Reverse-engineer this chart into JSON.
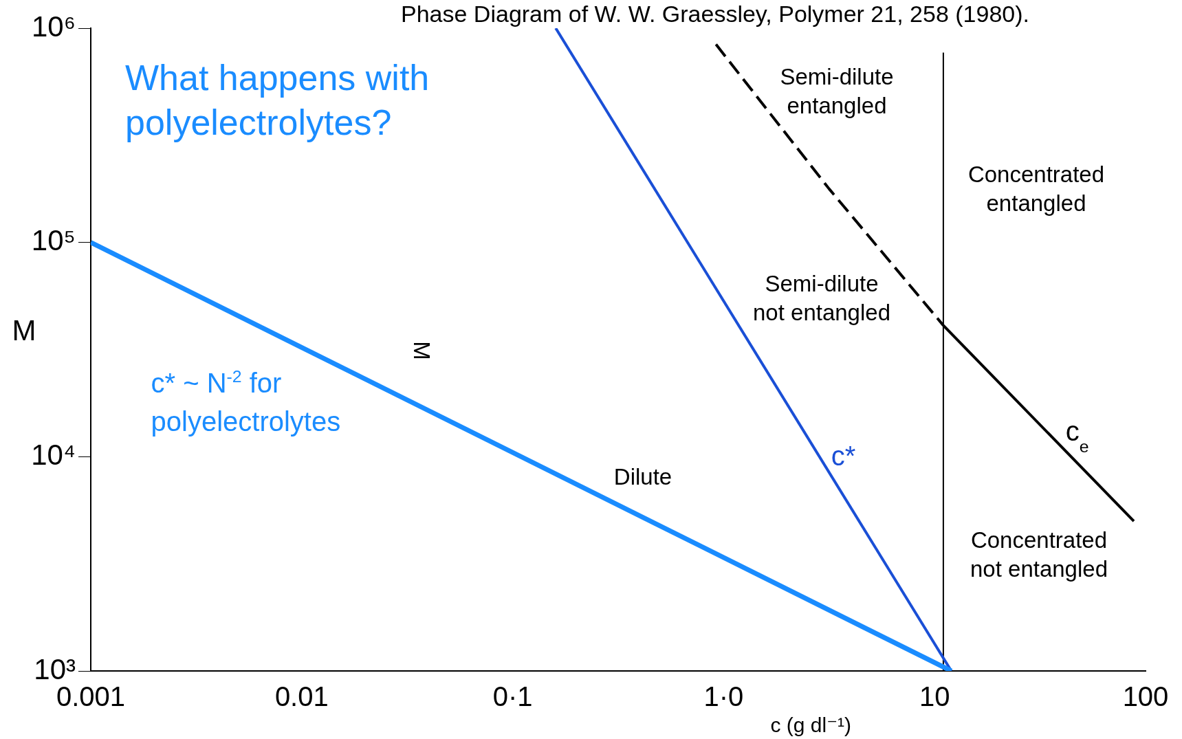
{
  "chart_data": {
    "type": "line",
    "title": "What happens with polyelectrolytes?",
    "subtitle": "Phase Diagram of W. W. Graessley, Polymer 21, 258 (1980).",
    "xlabel": "c (g dl⁻¹)",
    "ylabel": "M",
    "log": "xy",
    "grid": false,
    "legend": false,
    "marker": "none",
    "xlim": [
      0.001,
      100
    ],
    "ylim": [
      1000,
      1000000
    ],
    "xticks": [
      0.001,
      0.01,
      {
        "value": 0.1,
        "label": "0·1"
      },
      {
        "value": 1,
        "label": "1·0"
      },
      10,
      100
    ],
    "yticks": [
      {
        "value": 1000,
        "label": "10³"
      },
      {
        "value": 10000,
        "label": "10⁴"
      },
      {
        "value": 100000,
        "label": "10⁵"
      },
      {
        "value": 1000000,
        "label": "10⁶"
      }
    ],
    "series": [
      {
        "name": "c* ~ N$^{-2}$ for polyelectrolytes",
        "color": "#1a8cff",
        "x": [
          0.001,
          12
        ],
        "values": [
          100000,
          1000
        ]
      },
      {
        "name": "c*",
        "color": "#1a4fd6",
        "x": [
          0.16,
          12
        ],
        "values": [
          1000000,
          1000
        ]
      },
      {
        "color": "#000000",
        "line_style": "dashed",
        "x": [
          0.92,
          3.16,
          11
        ],
        "values": [
          840000,
          178000,
          41000
        ]
      },
      {
        "name": "c$_{e}$",
        "color": "#000000",
        "x": [
          11,
          88
        ],
        "values": [
          41000,
          5000
        ]
      },
      {
        "color": "#000000",
        "x": [
          11,
          11
        ],
        "values": [
          1000,
          770000
        ]
      }
    ],
    "annotations": [
      "Semi-dilute\nentangled",
      "Semi-dilute\nnot entangled",
      "Concentrated\nentangled",
      "Dilute",
      "Concentrated\nnot entangled",
      "M"
    ]
  }
}
